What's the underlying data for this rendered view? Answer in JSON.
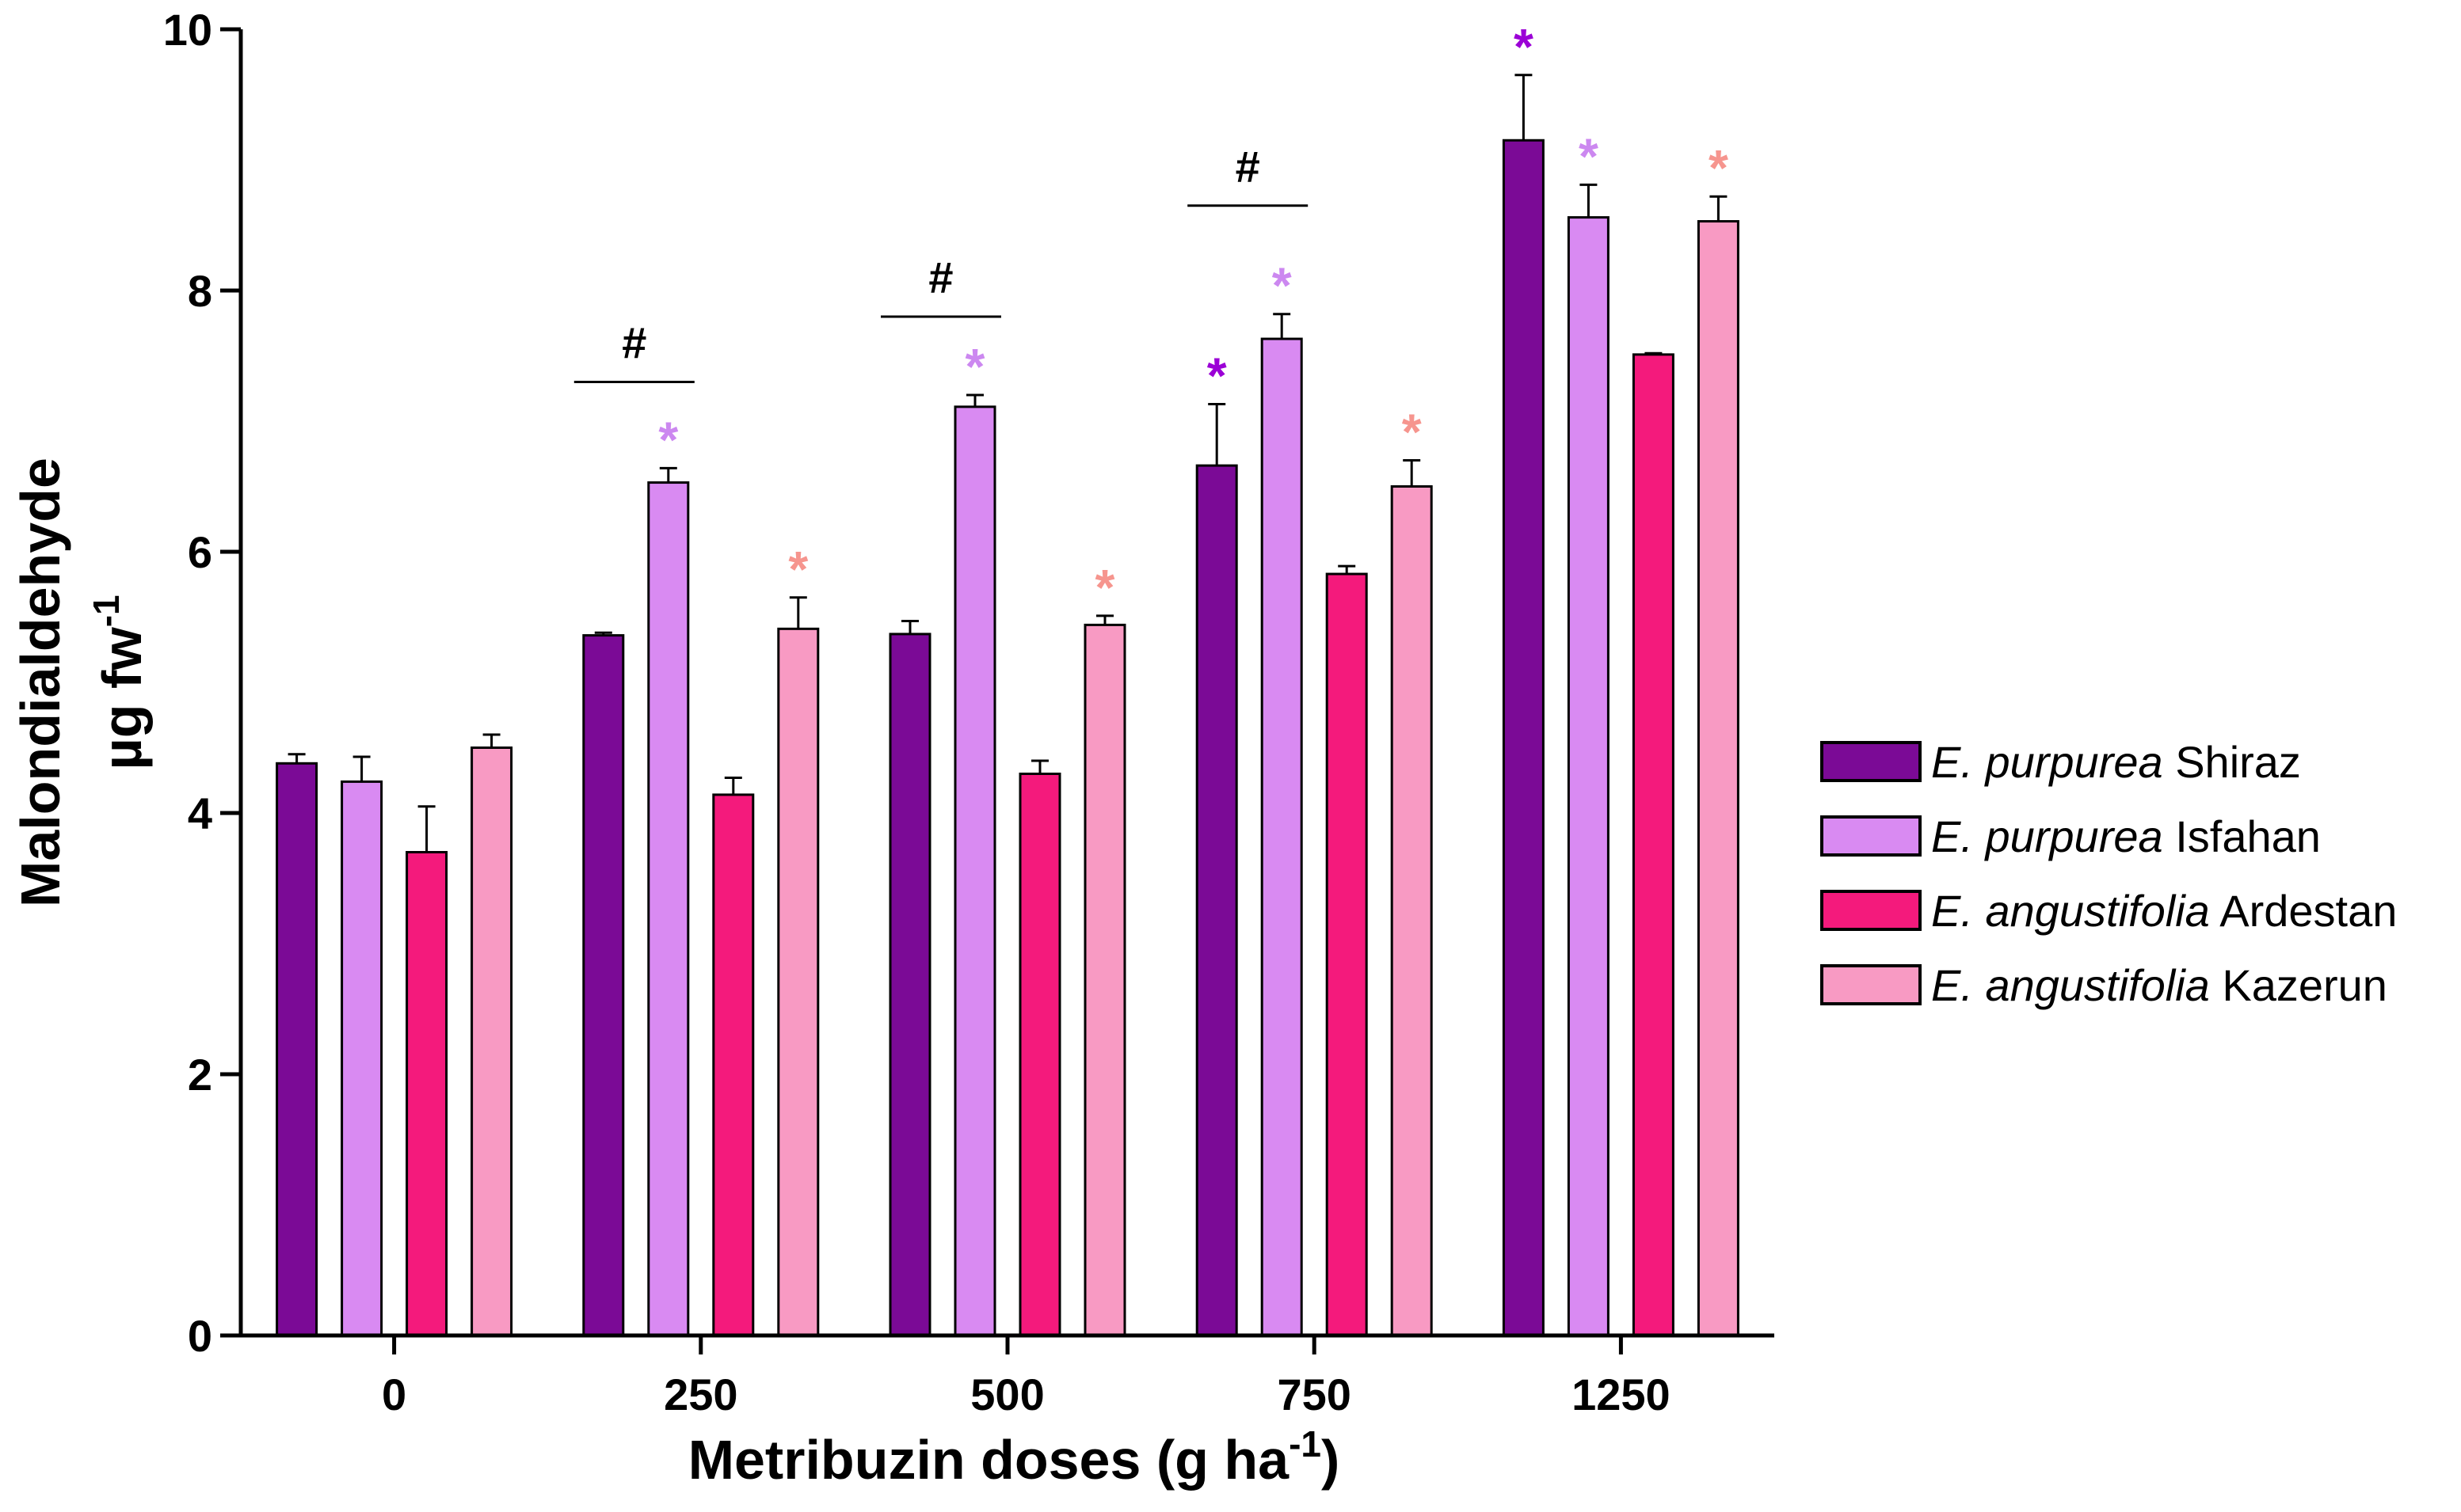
{
  "chart_data": {
    "type": "bar",
    "categories": [
      "0",
      "250",
      "500",
      "750",
      "1250"
    ],
    "xlabel": {
      "main": "Metribuzin doses (g ha",
      "sup": "-1",
      "tail": ")"
    },
    "ylabel": {
      "line1": "Malondialdehyde",
      "line2_main": "µg fw",
      "line2_sup": "-1"
    },
    "ylim": [
      0,
      10
    ],
    "yticks": [
      0,
      2,
      4,
      6,
      8,
      10
    ],
    "grid": false,
    "legend_position": "right",
    "series": [
      {
        "name": {
          "italic": "E. purpurea",
          "plain": " Shiraz"
        },
        "color": "#7B0A96",
        "values": [
          4.38,
          5.36,
          5.37,
          6.66,
          9.15
        ],
        "errors": [
          0.07,
          0.02,
          0.1,
          0.47,
          0.5
        ],
        "significance": [
          false,
          false,
          false,
          true,
          true
        ]
      },
      {
        "name": {
          "italic": "E. purpurea",
          "plain": " Isfahan"
        },
        "color": "#D98AF2",
        "values": [
          4.24,
          6.53,
          7.11,
          7.63,
          8.56
        ],
        "errors": [
          0.19,
          0.11,
          0.09,
          0.19,
          0.25
        ],
        "significance": [
          false,
          true,
          true,
          true,
          true
        ]
      },
      {
        "name": {
          "italic": "E. angustifolia",
          "plain": " Ardestan"
        },
        "color": "#F41A7C",
        "values": [
          3.7,
          4.14,
          4.3,
          5.83,
          7.51
        ],
        "errors": [
          0.35,
          0.13,
          0.1,
          0.06,
          0.01
        ],
        "significance": [
          false,
          false,
          false,
          false,
          false
        ]
      },
      {
        "name": {
          "italic": "E. angustifolia",
          "plain": " Kazerun"
        },
        "color": "#F89AC3",
        "values": [
          4.5,
          5.41,
          5.44,
          6.5,
          8.53
        ],
        "errors": [
          0.1,
          0.24,
          0.07,
          0.2,
          0.19
        ],
        "significance": [
          false,
          true,
          true,
          true,
          true
        ]
      }
    ],
    "significance_colors": [
      "#9B00D6",
      "#CC88F0",
      "#F41A7C",
      "#F6958E"
    ],
    "significance_symbol": "*",
    "group_annotations": [
      {
        "category_index": 1,
        "symbol": "#",
        "y": 7.3
      },
      {
        "category_index": 2,
        "symbol": "#",
        "y": 7.8
      },
      {
        "category_index": 3,
        "symbol": "#",
        "y": 8.65
      }
    ]
  }
}
